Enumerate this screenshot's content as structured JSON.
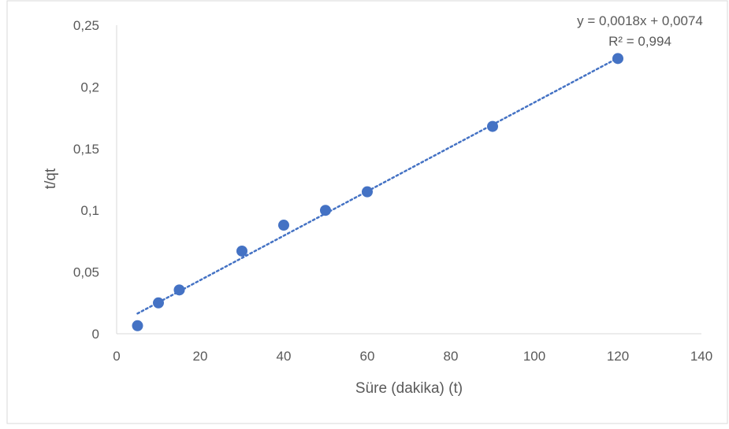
{
  "chart_data": {
    "type": "scatter",
    "title": "",
    "xlabel": "Süre (dakika) (t)",
    "ylabel": "t/qt",
    "xlim": [
      0,
      140
    ],
    "ylim": [
      0,
      0.25
    ],
    "x_ticks": [
      0,
      20,
      40,
      60,
      80,
      100,
      120,
      140
    ],
    "x_tick_labels": [
      "0",
      "20",
      "40",
      "60",
      "80",
      "100",
      "120",
      "140"
    ],
    "y_ticks": [
      0,
      0.05,
      0.1,
      0.15,
      0.2,
      0.25
    ],
    "y_tick_labels": [
      "0",
      "0,05",
      "0,1",
      "0,15",
      "0,2",
      "0,25"
    ],
    "grid": false,
    "legend": "none",
    "series": [
      {
        "color": "#4472C4",
        "x": [
          5,
          10,
          15,
          30,
          40,
          50,
          60,
          90,
          120
        ],
        "y": [
          0.0065,
          0.025,
          0.0355,
          0.067,
          0.088,
          0.1,
          0.115,
          0.168,
          0.223
        ]
      }
    ],
    "trendline": {
      "type": "linear",
      "style": "dotted",
      "color": "#4472C4",
      "slope": 0.0018,
      "intercept": 0.0074,
      "x_range": [
        5,
        120
      ],
      "equation_label": "y = 0,0018x + 0,0074",
      "r2_label": "R² = 0,994"
    },
    "colors": {
      "axis": "#D9D9D9",
      "text": "#595959",
      "border": "#D9D9D9"
    }
  }
}
